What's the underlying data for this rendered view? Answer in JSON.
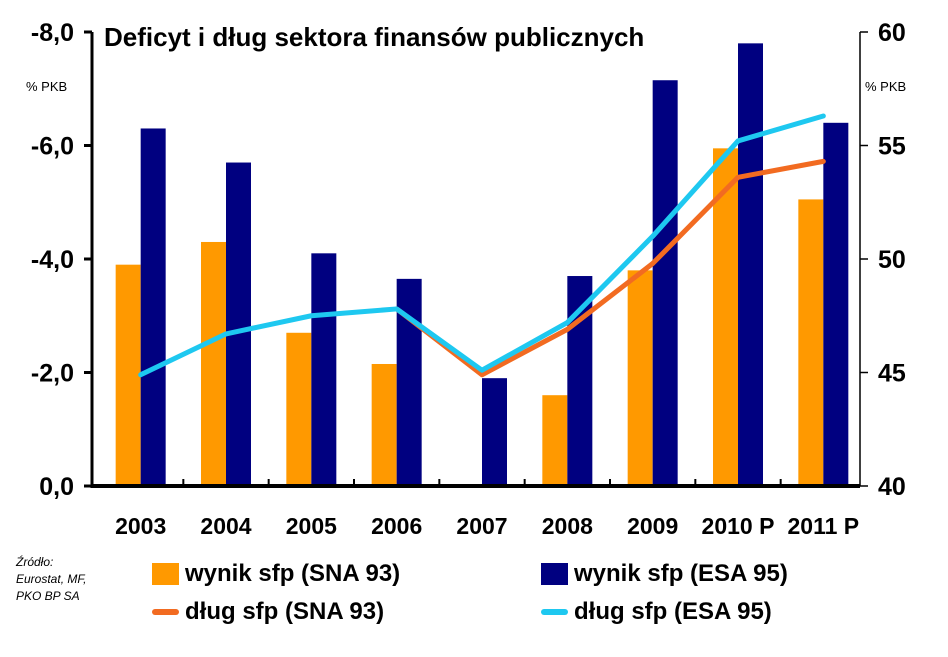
{
  "title": "Deficyt i dług sektora finansów publicznych",
  "left_axis": {
    "unit": "% PKB",
    "ticks": [
      "-8,0",
      "-6,0",
      "-4,0",
      "-2,0",
      "0,0"
    ]
  },
  "right_axis": {
    "unit": "% PKB",
    "ticks": [
      "60",
      "55",
      "50",
      "45",
      "40"
    ]
  },
  "source": {
    "line1": "Źródło:",
    "line2": "Eurostat, MF,",
    "line3": "PKO BP SA"
  },
  "legend": [
    {
      "label": "wynik sfp (SNA 93)",
      "color": "#FF9900",
      "kind": "box"
    },
    {
      "label": "wynik sfp (ESA 95)",
      "color": "#000080",
      "kind": "box"
    },
    {
      "label": "dług sfp (SNA 93)",
      "color": "#F26B21",
      "kind": "line"
    },
    {
      "label": "dług sfp (ESA 95)",
      "color": "#1EC8F0",
      "kind": "line"
    }
  ],
  "chart_data": {
    "type": "bar",
    "title": "Deficyt i dług sektora finansów publicznych",
    "xlabel": "",
    "ylabel": "% PKB",
    "y2label": "% PKB",
    "categories": [
      "2003",
      "2004",
      "2005",
      "2006",
      "2007",
      "2008",
      "2009",
      "2010 P",
      "2011 P"
    ],
    "ylim": [
      0,
      -8
    ],
    "y_inverted": true,
    "y2lim": [
      40,
      60
    ],
    "grid": false,
    "legend_position": "bottom",
    "series": [
      {
        "name": "wynik sfp (SNA 93)",
        "type": "bar",
        "axis": "left",
        "color": "#FF9900",
        "values": [
          -3.9,
          -4.3,
          -2.7,
          -2.15,
          null,
          -1.6,
          -3.8,
          -5.95,
          -5.05
        ]
      },
      {
        "name": "wynik sfp (ESA 95)",
        "type": "bar",
        "axis": "left",
        "color": "#000080",
        "values": [
          -6.3,
          -5.7,
          -4.1,
          -3.65,
          -1.9,
          -3.7,
          -7.15,
          -7.8,
          -6.4
        ]
      },
      {
        "name": "dług sfp (SNA 93)",
        "type": "line",
        "axis": "right",
        "color": "#F26B21",
        "values": [
          null,
          null,
          null,
          47.8,
          44.9,
          46.9,
          49.8,
          53.6,
          54.3
        ]
      },
      {
        "name": "dług sfp (ESA 95)",
        "type": "line",
        "axis": "right",
        "color": "#1EC8F0",
        "values": [
          44.9,
          46.7,
          47.5,
          47.8,
          45.1,
          47.2,
          51.0,
          55.2,
          56.3
        ]
      }
    ]
  }
}
